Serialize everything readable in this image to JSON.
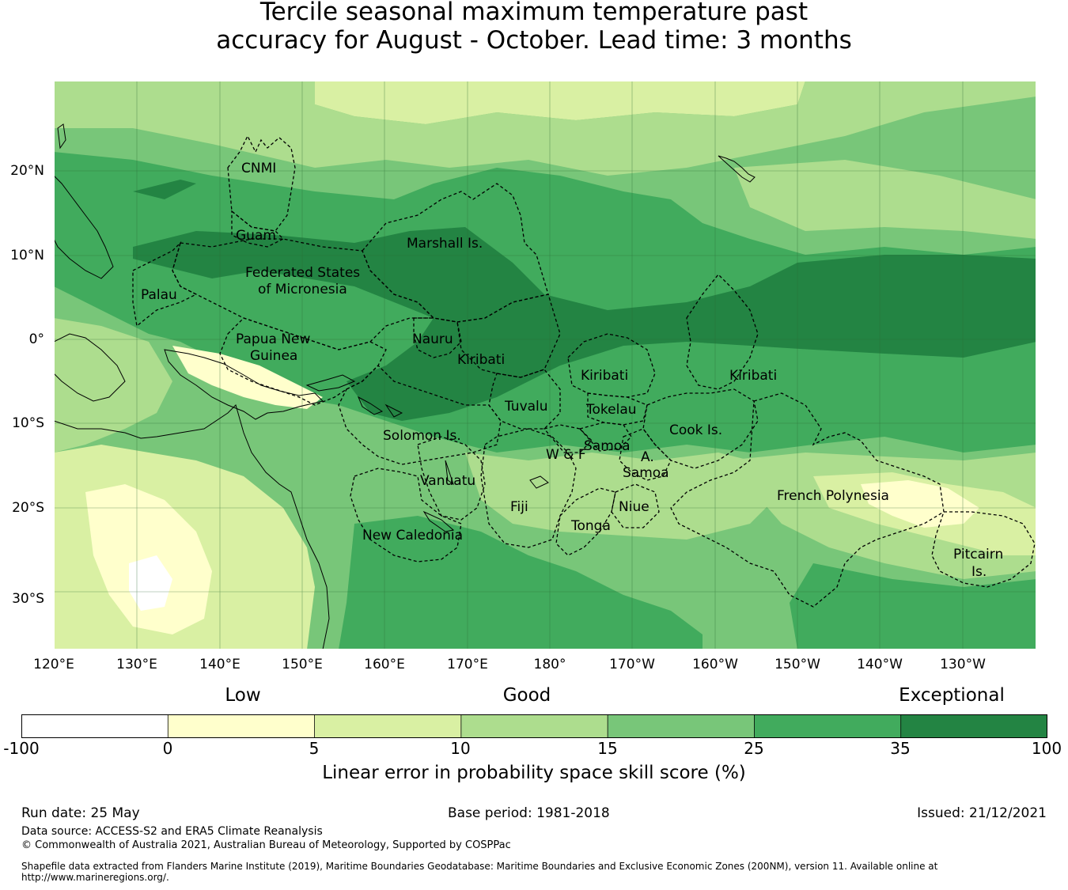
{
  "title": {
    "line1": "Tercile seasonal maximum temperature past",
    "line2": "accuracy for August - October. Lead time: 3 months"
  },
  "map": {
    "lon_labels": [
      "120°E",
      "130°E",
      "140°E",
      "150°E",
      "160°E",
      "170°E",
      "180°",
      "170°W",
      "160°W",
      "150°W",
      "140°W",
      "130°W"
    ],
    "lat_labels": [
      "20°N",
      "10°N",
      "0°",
      "10°S",
      "20°S",
      "30°S"
    ],
    "regions": [
      {
        "id": "cnmi",
        "name": "CNMI"
      },
      {
        "id": "guam",
        "name": "Guam"
      },
      {
        "id": "marshall",
        "name": "Marshall Is."
      },
      {
        "id": "fsm1",
        "name": "Federated States"
      },
      {
        "id": "fsm2",
        "name": "of Micronesia"
      },
      {
        "id": "palau",
        "name": "Palau"
      },
      {
        "id": "png1",
        "name": "Papua New"
      },
      {
        "id": "png2",
        "name": "Guinea"
      },
      {
        "id": "nauru",
        "name": "Nauru"
      },
      {
        "id": "kiribati_w",
        "name": "Kiribati"
      },
      {
        "id": "kiribati_c",
        "name": "Kiribati"
      },
      {
        "id": "kiribati_e",
        "name": "Kiribati"
      },
      {
        "id": "tuvalu",
        "name": "Tuvalu"
      },
      {
        "id": "tokelau",
        "name": "Tokelau"
      },
      {
        "id": "cook",
        "name": "Cook Is."
      },
      {
        "id": "solomon",
        "name": "Solomon Is."
      },
      {
        "id": "samoa",
        "name": "Samoa"
      },
      {
        "id": "wf",
        "name": "W & F"
      },
      {
        "id": "asamoa1",
        "name": "A."
      },
      {
        "id": "asamoa2",
        "name": "Samoa"
      },
      {
        "id": "vanuatu",
        "name": "Vanuatu"
      },
      {
        "id": "fiji",
        "name": "Fiji"
      },
      {
        "id": "niue",
        "name": "Niue"
      },
      {
        "id": "tonga",
        "name": "Tonga"
      },
      {
        "id": "frpoly",
        "name": "French Polynesia"
      },
      {
        "id": "newcal",
        "name": "New Caledonia"
      },
      {
        "id": "pitcairn1",
        "name": "Pitcairn"
      },
      {
        "id": "pitcairn2",
        "name": "Is."
      }
    ]
  },
  "legend": {
    "categories": [
      "Low",
      "Good",
      "Exceptional"
    ],
    "bins": [
      {
        "from": "-100",
        "to": "0",
        "color": "#ffffff"
      },
      {
        "from": "0",
        "to": "5",
        "color": "#ffffcc"
      },
      {
        "from": "5",
        "to": "10",
        "color": "#d9f0a3"
      },
      {
        "from": "10",
        "to": "15",
        "color": "#addd8e"
      },
      {
        "from": "15",
        "to": "25",
        "color": "#78c679"
      },
      {
        "from": "25",
        "to": "35",
        "color": "#41ab5d"
      },
      {
        "from": "35",
        "to": "100",
        "color": "#238443"
      }
    ],
    "ticks": [
      "-100",
      "0",
      "5",
      "10",
      "15",
      "25",
      "35",
      "100"
    ],
    "label": "Linear error in probability space skill score (%)"
  },
  "footer": {
    "run_date": "Run date: 25 May",
    "base_period": "Base period: 1981-2018",
    "issued": "Issued: 21/12/2021",
    "data_source": "Data source: ACCESS-S2 and ERA5 Climate Reanalysis",
    "copyright": "© Commonwealth of Australia 2021, Australian Bureau of Meteorology, Supported by COSPPac",
    "shapefile": "Shapefile data extracted from Flanders Marine Institute (2019), Maritime Boundaries Geodatabase: Maritime Boundaries and Exclusive Economic Zones (200NM), version 11. Available online at",
    "url": "http://www.marineregions.org/."
  }
}
